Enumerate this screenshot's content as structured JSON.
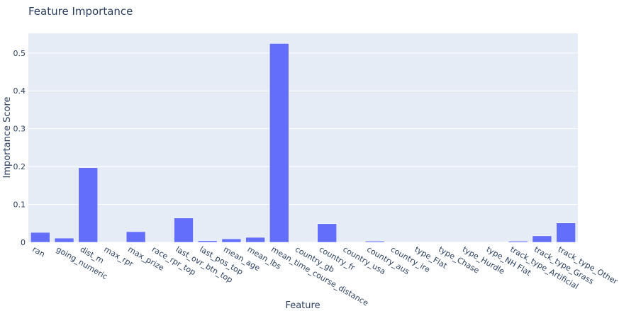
{
  "chart_data": {
    "type": "bar",
    "title": "Feature Importance",
    "x_label": "Feature",
    "y_label": "Importance Score",
    "categories": [
      "ran",
      "going_numeric",
      "dist_m",
      "max_rpr",
      "max_prize",
      "race_rpr_top",
      "last_ovr_btn_top",
      "last_pos_top",
      "mean_age",
      "mean_lbs",
      "mean_time_course_distance",
      "country_gb",
      "country_fr",
      "country_usa",
      "country_aus",
      "country_ire",
      "type_Flat",
      "type_Chase",
      "type_Hurdle",
      "type_NH Flat",
      "track_type_Artificial",
      "track_type_Grass",
      "track_type_Other"
    ],
    "values": [
      0.026,
      0.011,
      0.197,
      0.001,
      0.028,
      0.0005,
      0.064,
      0.004,
      0.009,
      0.013,
      0.525,
      0,
      0.049,
      0.001,
      0.003,
      0,
      0,
      0,
      0,
      0,
      0.003,
      0.017,
      0.051
    ],
    "color": "#636efa",
    "ylim": [
      0,
      0.552
    ],
    "yticks": [
      0,
      0.1,
      0.2,
      0.3,
      0.4,
      0.5
    ],
    "grid": true
  }
}
